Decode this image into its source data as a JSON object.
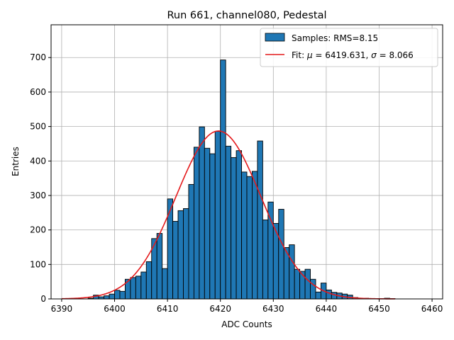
{
  "chart_data": {
    "type": "bar",
    "title": "Run 661, channel080, Pedestal",
    "xlabel": "ADC Counts",
    "ylabel": "Entries",
    "xlim": [
      6388,
      6462
    ],
    "ylim": [
      0,
      795
    ],
    "xticks": [
      6390,
      6400,
      6410,
      6420,
      6430,
      6440,
      6450,
      6460
    ],
    "yticks": [
      0,
      100,
      200,
      300,
      400,
      500,
      600,
      700
    ],
    "grid": true,
    "legend_position": "top-right",
    "bin_width": 1,
    "histogram": {
      "name": "Samples: RMS=8.15",
      "color": "#1f77b4",
      "bins": [
        [
          6395,
          2
        ],
        [
          6396,
          11
        ],
        [
          6397,
          6
        ],
        [
          6398,
          9
        ],
        [
          6399,
          14
        ],
        [
          6400,
          25
        ],
        [
          6401,
          22
        ],
        [
          6402,
          57
        ],
        [
          6403,
          62
        ],
        [
          6404,
          66
        ],
        [
          6405,
          78
        ],
        [
          6406,
          108
        ],
        [
          6407,
          175
        ],
        [
          6408,
          190
        ],
        [
          6409,
          88
        ],
        [
          6410,
          290
        ],
        [
          6411,
          225
        ],
        [
          6412,
          256
        ],
        [
          6413,
          262
        ],
        [
          6414,
          332
        ],
        [
          6415,
          440
        ],
        [
          6416,
          499
        ],
        [
          6417,
          437
        ],
        [
          6418,
          421
        ],
        [
          6419,
          486
        ],
        [
          6420,
          693
        ],
        [
          6421,
          443
        ],
        [
          6422,
          410
        ],
        [
          6423,
          430
        ],
        [
          6424,
          368
        ],
        [
          6425,
          355
        ],
        [
          6426,
          370
        ],
        [
          6427,
          458
        ],
        [
          6428,
          229
        ],
        [
          6429,
          281
        ],
        [
          6430,
          219
        ],
        [
          6431,
          260
        ],
        [
          6432,
          149
        ],
        [
          6433,
          157
        ],
        [
          6434,
          86
        ],
        [
          6435,
          80
        ],
        [
          6436,
          86
        ],
        [
          6437,
          57
        ],
        [
          6438,
          20
        ],
        [
          6439,
          46
        ],
        [
          6440,
          26
        ],
        [
          6441,
          19
        ],
        [
          6442,
          17
        ],
        [
          6443,
          14
        ],
        [
          6444,
          11
        ],
        [
          6445,
          4
        ],
        [
          6446,
          2
        ],
        [
          6447,
          2
        ],
        [
          6449,
          1
        ],
        [
          6450,
          1
        ],
        [
          6451,
          2
        ],
        [
          6452,
          1
        ]
      ]
    },
    "fit": {
      "name": "Fit: μ = 6419.631, σ = 8.066",
      "name_prefix": "Fit: ",
      "mu_symbol": "μ",
      "mu_text": " = 6419.631, ",
      "sigma_symbol": "σ",
      "sigma_text": " = 8.066",
      "color": "#e41a1c",
      "mu": 6419.631,
      "sigma": 8.066,
      "amplitude": 487,
      "x_range": [
        6390,
        6453
      ]
    }
  }
}
